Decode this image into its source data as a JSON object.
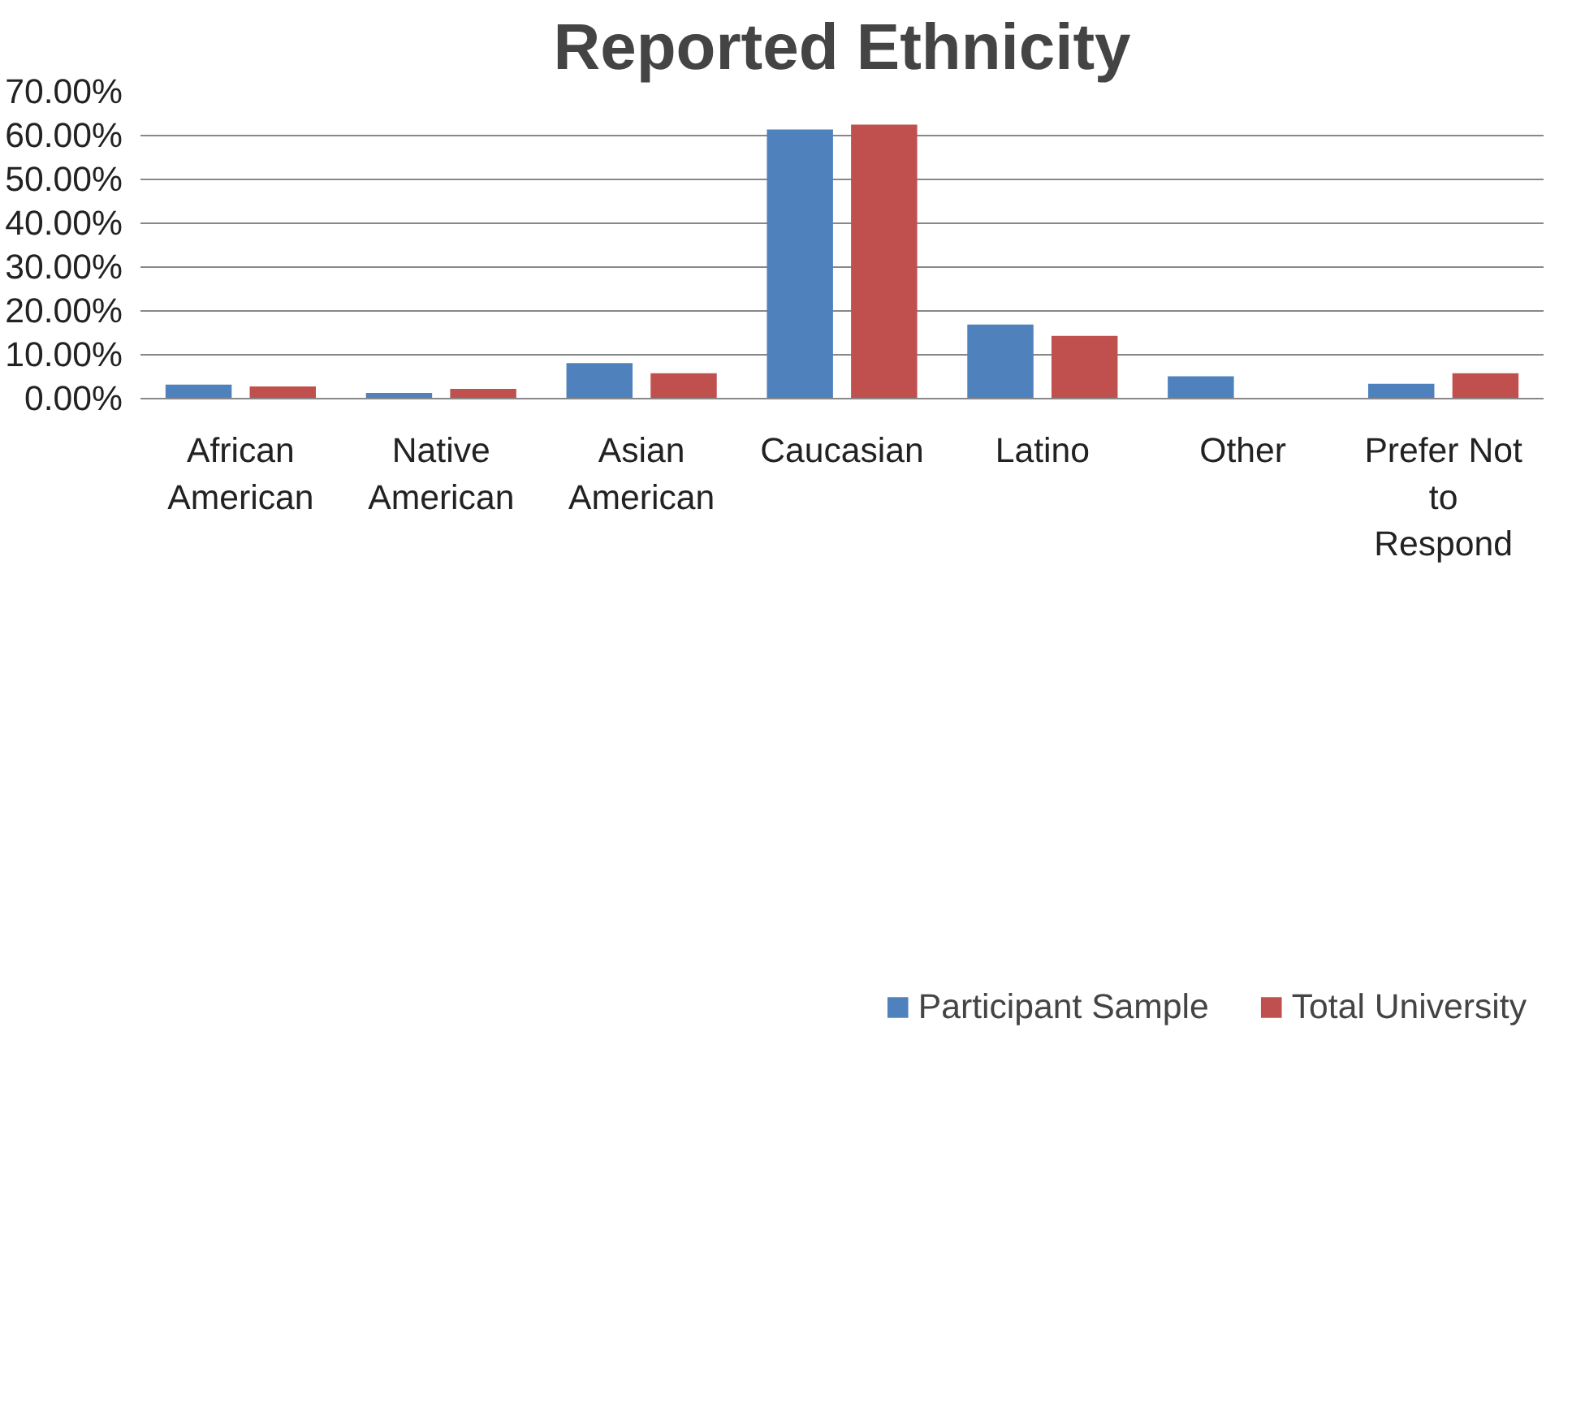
{
  "chart_data": {
    "type": "bar",
    "title": "Reported Ethnicity",
    "categories": [
      "African\nAmerican",
      "Native\nAmerican",
      "Asian\nAmerican",
      "Caucasian",
      "Latino",
      "Other",
      "Prefer Not\nto\nRespond"
    ],
    "series": [
      {
        "name": "Participant Sample",
        "color": "#4f81bd",
        "values": [
          3.2,
          1.3,
          8.1,
          61.4,
          16.9,
          5.1,
          3.4
        ]
      },
      {
        "name": "Total University",
        "color": "#c0504d",
        "values": [
          2.8,
          2.2,
          5.8,
          62.5,
          14.3,
          0,
          5.8
        ]
      }
    ],
    "ylim": [
      0,
      70
    ],
    "yticks": [
      {
        "value": 0,
        "label": "0.00%"
      },
      {
        "value": 10,
        "label": "10.00%"
      },
      {
        "value": 20,
        "label": "20.00%"
      },
      {
        "value": 30,
        "label": "30.00%"
      },
      {
        "value": 40,
        "label": "40.00%"
      },
      {
        "value": 50,
        "label": "50.00%"
      },
      {
        "value": 60,
        "label": "60.00%"
      },
      {
        "value": 70,
        "label": "70.00%"
      }
    ],
    "grid": "y",
    "legend": "bottom"
  }
}
